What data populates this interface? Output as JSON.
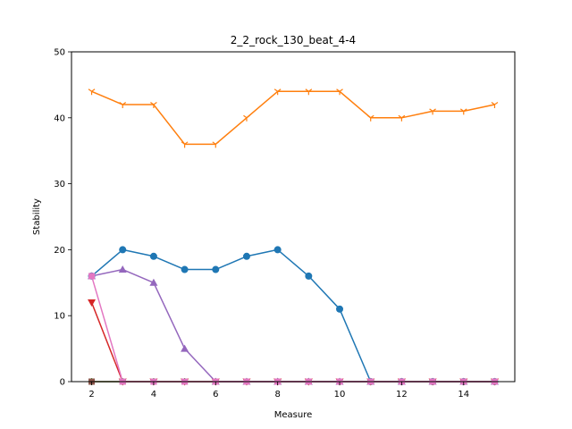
{
  "chart_data": {
    "type": "line",
    "title": "2_2_rock_130_beat_4-4",
    "xlabel": "Measure",
    "ylabel": "Stability",
    "xlim": [
      1.35,
      15.65
    ],
    "ylim": [
      0,
      50
    ],
    "xticks": [
      2,
      4,
      6,
      8,
      10,
      12,
      14
    ],
    "yticks": [
      0,
      10,
      20,
      30,
      40,
      50
    ],
    "grid": false,
    "legend": "none",
    "x": [
      2,
      3,
      4,
      5,
      6,
      7,
      8,
      9,
      10,
      11,
      12,
      13,
      14,
      15
    ],
    "series": [
      {
        "color": "#1f77b4",
        "marker": "circle",
        "values": [
          16,
          20,
          19,
          17,
          17,
          19,
          20,
          16,
          11,
          0,
          0,
          0,
          0,
          0
        ]
      },
      {
        "color": "#ff7f0e",
        "marker": "tri_down",
        "values": [
          44,
          42,
          42,
          36,
          36,
          40,
          44,
          44,
          44,
          40,
          40,
          41,
          41,
          42
        ]
      },
      {
        "color": "#2ca02c",
        "marker": "plus",
        "values": [
          0,
          0,
          0,
          0,
          0,
          0,
          0,
          0,
          0,
          0,
          0,
          0,
          0,
          0
        ]
      },
      {
        "color": "#d62728",
        "marker": "triangle_down",
        "values": [
          12,
          0,
          0,
          0,
          0,
          0,
          0,
          0,
          0,
          0,
          0,
          0,
          0,
          0
        ]
      },
      {
        "color": "#9467bd",
        "marker": "triangle_up",
        "values": [
          16,
          17,
          15,
          5,
          0,
          0,
          0,
          0,
          0,
          0,
          0,
          0,
          0,
          0
        ]
      },
      {
        "color": "#8c564b",
        "marker": "square",
        "values": [
          0,
          0,
          0,
          0,
          0,
          0,
          0,
          0,
          0,
          0,
          0,
          0,
          0,
          0
        ]
      },
      {
        "color": "#e377c2",
        "marker": "square",
        "values": [
          16,
          0,
          0,
          0,
          0,
          0,
          0,
          0,
          0,
          0,
          0,
          0,
          0,
          0
        ]
      }
    ]
  }
}
